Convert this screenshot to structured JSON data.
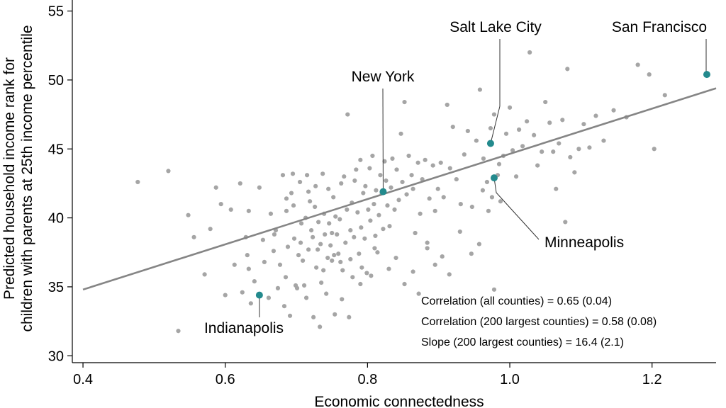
{
  "chart_data": {
    "type": "scatter",
    "xlabel": "Economic connectedness",
    "ylabel_lines": [
      "Predicted household income rank for",
      "children with parents at 25th income percentile"
    ],
    "xlim": [
      0.385,
      1.29
    ],
    "ylim": [
      29.5,
      55.8
    ],
    "xticks": [
      0.4,
      0.6,
      0.8,
      1.0,
      1.2
    ],
    "xtick_labels": [
      "0.4",
      "0.6",
      "0.8",
      "1.0",
      "1.2"
    ],
    "yticks": [
      30,
      35,
      40,
      45,
      50,
      55
    ],
    "ytick_labels": [
      "30",
      "35",
      "40",
      "45",
      "50",
      "55"
    ],
    "fit_line": {
      "x": [
        0.4,
        1.29
      ],
      "y": [
        34.8,
        49.4
      ]
    },
    "colors": {
      "points": "#a5a5a5",
      "highlight": "#238a8d",
      "fit": "#858585"
    },
    "points": [
      [
        0.477,
        42.6
      ],
      [
        0.52,
        43.4
      ],
      [
        0.534,
        31.8
      ],
      [
        0.548,
        40.2
      ],
      [
        0.556,
        38.6
      ],
      [
        0.571,
        35.9
      ],
      [
        0.579,
        39.2
      ],
      [
        0.587,
        42.2
      ],
      [
        0.594,
        41.0
      ],
      [
        0.6,
        34.4
      ],
      [
        0.608,
        40.6
      ],
      [
        0.613,
        36.6
      ],
      [
        0.621,
        42.5
      ],
      [
        0.624,
        34.6
      ],
      [
        0.629,
        38.6
      ],
      [
        0.631,
        37.3
      ],
      [
        0.633,
        36.3
      ],
      [
        0.633,
        40.5
      ],
      [
        0.636,
        33.8
      ],
      [
        0.641,
        35.4
      ],
      [
        0.648,
        42.2
      ],
      [
        0.653,
        38.4
      ],
      [
        0.655,
        36.8
      ],
      [
        0.661,
        34.2
      ],
      [
        0.664,
        40.3
      ],
      [
        0.668,
        37.6
      ],
      [
        0.669,
        38.8
      ],
      [
        0.671,
        39.1
      ],
      [
        0.674,
        34.9
      ],
      [
        0.677,
        36.6
      ],
      [
        0.681,
        43.1
      ],
      [
        0.683,
        33.6
      ],
      [
        0.685,
        35.7
      ],
      [
        0.686,
        40.5
      ],
      [
        0.688,
        37.9
      ],
      [
        0.691,
        32.9
      ],
      [
        0.693,
        41.8
      ],
      [
        0.695,
        43.2
      ],
      [
        0.697,
        38.5
      ],
      [
        0.699,
        35.1
      ],
      [
        0.701,
        34.9
      ],
      [
        0.703,
        37.3
      ],
      [
        0.705,
        42.6
      ],
      [
        0.707,
        39.6
      ],
      [
        0.709,
        36.9
      ],
      [
        0.711,
        35.1
      ],
      [
        0.713,
        40.0
      ],
      [
        0.714,
        34.2
      ],
      [
        0.715,
        43.1
      ],
      [
        0.717,
        37.7
      ],
      [
        0.719,
        41.2
      ],
      [
        0.721,
        39.1
      ],
      [
        0.723,
        38.6
      ],
      [
        0.724,
        32.8
      ],
      [
        0.726,
        40.8
      ],
      [
        0.728,
        36.4
      ],
      [
        0.73,
        37.7
      ],
      [
        0.731,
        39.7
      ],
      [
        0.733,
        32.1
      ],
      [
        0.734,
        38.1
      ],
      [
        0.735,
        35.3
      ],
      [
        0.737,
        43.2
      ],
      [
        0.738,
        36.2
      ],
      [
        0.74,
        38.8
      ],
      [
        0.742,
        34.5
      ],
      [
        0.744,
        37.1
      ],
      [
        0.745,
        42.1
      ],
      [
        0.746,
        39.6
      ],
      [
        0.748,
        38.0
      ],
      [
        0.75,
        36.9
      ],
      [
        0.752,
        41.5
      ],
      [
        0.753,
        37.3
      ],
      [
        0.754,
        33.0
      ],
      [
        0.755,
        40.1
      ],
      [
        0.757,
        38.8
      ],
      [
        0.759,
        37.4
      ],
      [
        0.761,
        39.9
      ],
      [
        0.763,
        42.5
      ],
      [
        0.764,
        34.1
      ],
      [
        0.765,
        36.2
      ],
      [
        0.767,
        43.0
      ],
      [
        0.769,
        38.2
      ],
      [
        0.771,
        40.6
      ],
      [
        0.772,
        47.5
      ],
      [
        0.774,
        32.8
      ],
      [
        0.776,
        39.1
      ],
      [
        0.778,
        41.1
      ],
      [
        0.779,
        35.7
      ],
      [
        0.781,
        38.6
      ],
      [
        0.782,
        42.7
      ],
      [
        0.784,
        43.5
      ],
      [
        0.786,
        40.4
      ],
      [
        0.788,
        37.4
      ],
      [
        0.79,
        44.2
      ],
      [
        0.791,
        39.3
      ],
      [
        0.792,
        36.4
      ],
      [
        0.794,
        41.8
      ],
      [
        0.796,
        38.5
      ],
      [
        0.797,
        42.3
      ],
      [
        0.799,
        36.0
      ],
      [
        0.801,
        40.6
      ],
      [
        0.803,
        43.6
      ],
      [
        0.804,
        39.8
      ],
      [
        0.805,
        35.8
      ],
      [
        0.807,
        44.5
      ],
      [
        0.809,
        41.0
      ],
      [
        0.811,
        38.7
      ],
      [
        0.812,
        42.0
      ],
      [
        0.814,
        37.5
      ],
      [
        0.816,
        40.2
      ],
      [
        0.818,
        43.1
      ],
      [
        0.82,
        41.8
      ],
      [
        0.822,
        39.2
      ],
      [
        0.824,
        44.1
      ],
      [
        0.826,
        42.7
      ],
      [
        0.828,
        40.9
      ],
      [
        0.831,
        39.4
      ],
      [
        0.833,
        42.2
      ],
      [
        0.835,
        44.3
      ],
      [
        0.838,
        40.6
      ],
      [
        0.841,
        43.5
      ],
      [
        0.844,
        41.3
      ],
      [
        0.847,
        46.1
      ],
      [
        0.849,
        42.6
      ],
      [
        0.852,
        48.4
      ],
      [
        0.855,
        41.7
      ],
      [
        0.858,
        44.5
      ],
      [
        0.862,
        43.1
      ],
      [
        0.864,
        42.1
      ],
      [
        0.867,
        38.9
      ],
      [
        0.871,
        44.0
      ],
      [
        0.874,
        40.3
      ],
      [
        0.877,
        42.8
      ],
      [
        0.881,
        44.2
      ],
      [
        0.884,
        37.8
      ],
      [
        0.887,
        41.4
      ],
      [
        0.892,
        43.8
      ],
      [
        0.895,
        40.5
      ],
      [
        0.899,
        42.1
      ],
      [
        0.903,
        44.0
      ],
      [
        0.907,
        41.5
      ],
      [
        0.912,
        48.2
      ],
      [
        0.916,
        43.6
      ],
      [
        0.92,
        46.6
      ],
      [
        0.925,
        42.8
      ],
      [
        0.931,
        41.0
      ],
      [
        0.936,
        44.6
      ],
      [
        0.941,
        46.3
      ],
      [
        0.947,
        40.8
      ],
      [
        0.953,
        45.6
      ],
      [
        0.958,
        49.3
      ],
      [
        0.963,
        44.3
      ],
      [
        0.968,
        42.6
      ],
      [
        0.973,
        46.5
      ],
      [
        0.978,
        47.5
      ],
      [
        0.983,
        43.1
      ],
      [
        0.987,
        41.2
      ],
      [
        0.991,
        44.5
      ],
      [
        0.995,
        46.1
      ],
      [
        1.0,
        48.0
      ],
      [
        1.004,
        44.9
      ],
      [
        1.009,
        43.0
      ],
      [
        1.013,
        46.4
      ],
      [
        1.018,
        45.2
      ],
      [
        1.024,
        47.0
      ],
      [
        1.028,
        52.0
      ],
      [
        1.034,
        46.0
      ],
      [
        1.039,
        43.8
      ],
      [
        1.045,
        44.8
      ],
      [
        1.05,
        48.4
      ],
      [
        1.056,
        46.9
      ],
      [
        1.061,
        44.8
      ],
      [
        1.065,
        42.1
      ],
      [
        1.069,
        45.4
      ],
      [
        1.074,
        47.1
      ],
      [
        1.078,
        39.7
      ],
      [
        1.081,
        50.8
      ],
      [
        1.085,
        44.4
      ],
      [
        1.091,
        43.3
      ],
      [
        1.097,
        45.0
      ],
      [
        1.104,
        46.8
      ],
      [
        1.112,
        45.1
      ],
      [
        1.121,
        47.4
      ],
      [
        1.132,
        45.6
      ],
      [
        1.146,
        47.8
      ],
      [
        1.164,
        47.3
      ],
      [
        1.18,
        51.1
      ],
      [
        1.196,
        50.4
      ],
      [
        1.203,
        45.0
      ],
      [
        1.218,
        48.9
      ],
      [
        0.978,
        34.8
      ],
      [
        0.975,
        41.5
      ],
      [
        0.97,
        40.5
      ],
      [
        0.985,
        43.9
      ],
      [
        0.962,
        42.0
      ],
      [
        0.957,
        38.1
      ],
      [
        0.946,
        37.4
      ],
      [
        0.93,
        39.0
      ],
      [
        0.915,
        35.9
      ],
      [
        0.905,
        37.2
      ],
      [
        0.895,
        36.6
      ],
      [
        0.884,
        38.2
      ],
      [
        0.872,
        34.5
      ],
      [
        0.864,
        36.1
      ],
      [
        0.852,
        35.2
      ],
      [
        0.84,
        37.1
      ],
      [
        0.83,
        36.3
      ],
      [
        0.81,
        37.8
      ],
      [
        0.79,
        35.2
      ],
      [
        0.776,
        37.0
      ],
      [
        0.762,
        36.8
      ],
      [
        0.75,
        38.9
      ],
      [
        0.739,
        40.3
      ],
      [
        0.727,
        42.3
      ],
      [
        0.717,
        41.9
      ],
      [
        0.706,
        38.2
      ],
      [
        0.696,
        40.9
      ],
      [
        0.686,
        41.4
      ]
    ],
    "highlights": [
      {
        "name": "San Francisco",
        "x": 1.277,
        "y": 50.4
      },
      {
        "name": "Salt Lake City",
        "x": 0.973,
        "y": 45.4
      },
      {
        "name": "New York",
        "x": 0.822,
        "y": 41.9
      },
      {
        "name": "Minneapolis",
        "x": 0.978,
        "y": 42.9
      },
      {
        "name": "Indianapolis",
        "x": 0.648,
        "y": 34.4
      }
    ],
    "annotations": [
      "Correlation (all counties) = 0.65 (0.04)",
      "Correlation (200 largest counties) = 0.58 (0.08)",
      "Slope (200 largest counties) = 16.4 (2.1)"
    ]
  }
}
